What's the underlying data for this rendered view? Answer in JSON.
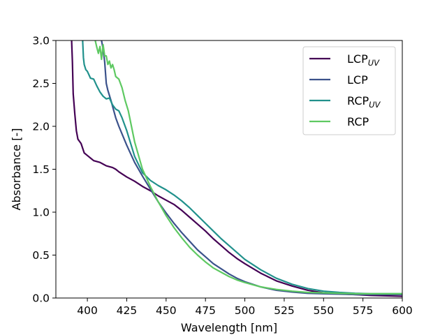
{
  "chart_data": {
    "type": "line",
    "title": "",
    "xlabel": "Wavelength [nm]",
    "ylabel": "Absorbance [-]",
    "xlim": [
      380,
      600
    ],
    "ylim": [
      0,
      3
    ],
    "x_ticks": [
      400,
      425,
      450,
      475,
      500,
      525,
      550,
      575,
      600
    ],
    "x_tick_labels": [
      "400",
      "425",
      "450",
      "475",
      "500",
      "525",
      "550",
      "575",
      "600"
    ],
    "y_ticks": [
      0,
      0.5,
      1,
      1.5,
      2,
      2.5,
      3
    ],
    "y_tick_labels": [
      "0.0",
      "0.5",
      "1.0",
      "1.5",
      "2.0",
      "2.5",
      "3.0"
    ],
    "grid": false,
    "legend_position": "top-right",
    "series": [
      {
        "name": "LCP",
        "name_sub": "UV",
        "color": "#440154",
        "x": [
          390,
          390.5,
          391,
          392,
          393,
          394,
          396,
          398,
          400,
          402,
          404,
          406,
          408,
          410,
          412,
          414,
          416,
          418,
          420,
          425,
          430,
          435,
          440,
          445,
          450,
          455,
          460,
          465,
          470,
          475,
          480,
          485,
          490,
          495,
          500,
          510,
          520,
          530,
          540,
          550,
          560,
          570,
          580,
          590,
          600
        ],
        "y": [
          3.0,
          2.75,
          2.38,
          2.15,
          1.95,
          1.85,
          1.8,
          1.69,
          1.66,
          1.63,
          1.6,
          1.59,
          1.58,
          1.56,
          1.54,
          1.53,
          1.52,
          1.5,
          1.47,
          1.41,
          1.36,
          1.3,
          1.25,
          1.19,
          1.14,
          1.09,
          1.02,
          0.94,
          0.86,
          0.78,
          0.69,
          0.61,
          0.53,
          0.46,
          0.4,
          0.29,
          0.2,
          0.14,
          0.09,
          0.06,
          0.05,
          0.04,
          0.03,
          0.025,
          0.02
        ]
      },
      {
        "name": "LCP",
        "name_sub": "",
        "color": "#3b528b",
        "x": [
          409,
          410,
          411,
          412,
          413,
          415,
          418,
          420,
          425,
          430,
          435,
          440,
          445,
          450,
          455,
          460,
          465,
          470,
          475,
          480,
          485,
          490,
          495,
          500,
          510,
          520,
          530,
          540,
          550,
          560,
          570,
          580,
          590,
          600
        ],
        "y": [
          3.0,
          2.9,
          2.75,
          2.5,
          2.42,
          2.3,
          2.1,
          2.0,
          1.78,
          1.58,
          1.42,
          1.27,
          1.12,
          0.99,
          0.87,
          0.76,
          0.66,
          0.56,
          0.48,
          0.4,
          0.34,
          0.28,
          0.23,
          0.19,
          0.13,
          0.09,
          0.07,
          0.055,
          0.05,
          0.045,
          0.04,
          0.04,
          0.04,
          0.04
        ]
      },
      {
        "name": "RCP",
        "name_sub": "UV",
        "color": "#21918c",
        "x": [
          397,
          397.5,
          398,
          399,
          400,
          402,
          404,
          406,
          408,
          410,
          412,
          414,
          416,
          418,
          420,
          422,
          425,
          430,
          435,
          440,
          445,
          450,
          455,
          460,
          465,
          470,
          475,
          480,
          485,
          490,
          495,
          500,
          510,
          520,
          530,
          540,
          550,
          560,
          570,
          580,
          590,
          600
        ],
        "y": [
          3.0,
          2.8,
          2.72,
          2.66,
          2.64,
          2.56,
          2.55,
          2.47,
          2.4,
          2.35,
          2.32,
          2.33,
          2.25,
          2.2,
          2.18,
          2.1,
          1.95,
          1.65,
          1.46,
          1.37,
          1.31,
          1.26,
          1.2,
          1.13,
          1.05,
          0.96,
          0.87,
          0.78,
          0.69,
          0.61,
          0.53,
          0.45,
          0.33,
          0.23,
          0.16,
          0.11,
          0.08,
          0.065,
          0.055,
          0.05,
          0.05,
          0.05
        ]
      },
      {
        "name": "RCP",
        "name_sub": "",
        "color": "#5ec962",
        "x": [
          405,
          406,
          407,
          408,
          409,
          410,
          411,
          412,
          413,
          414,
          415,
          416,
          417,
          418,
          420,
          422,
          424,
          426,
          428,
          430,
          435,
          440,
          445,
          450,
          455,
          460,
          465,
          470,
          475,
          480,
          485,
          490,
          495,
          500,
          510,
          520,
          530,
          540,
          550,
          560,
          570,
          580,
          590,
          600
        ],
        "y": [
          3.0,
          2.92,
          2.85,
          2.93,
          2.78,
          2.95,
          2.82,
          2.82,
          2.72,
          2.76,
          2.68,
          2.72,
          2.66,
          2.58,
          2.55,
          2.45,
          2.3,
          2.18,
          2.0,
          1.82,
          1.5,
          1.3,
          1.12,
          0.96,
          0.82,
          0.7,
          0.59,
          0.5,
          0.42,
          0.35,
          0.3,
          0.25,
          0.21,
          0.18,
          0.13,
          0.1,
          0.08,
          0.065,
          0.06,
          0.055,
          0.05,
          0.05,
          0.05,
          0.05
        ]
      }
    ]
  }
}
